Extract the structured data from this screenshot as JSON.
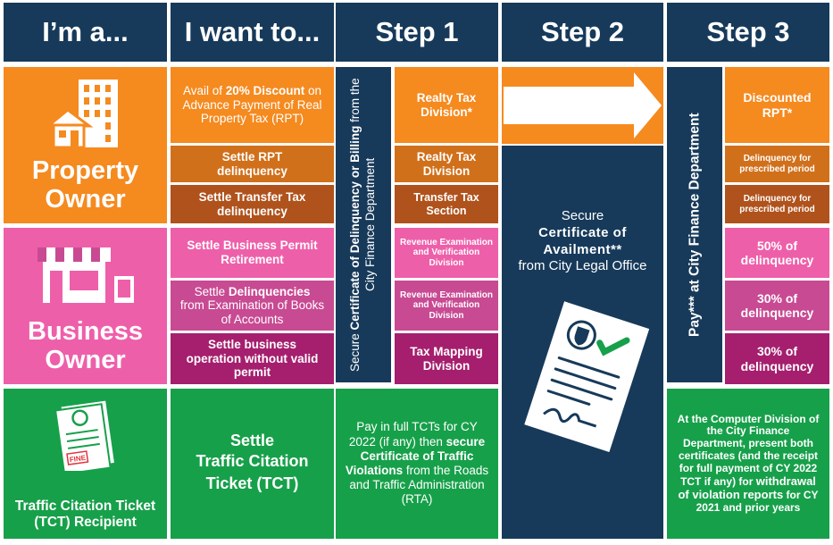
{
  "headers": {
    "im_a": "I’m a...",
    "want": "I want to...",
    "step1": "Step 1",
    "step2": "Step 2",
    "step3": "Step 3"
  },
  "property": {
    "title_line1": "Property",
    "title_line2": "Owner",
    "w1_pre": "Avail of ",
    "w1_bold": "20% Discount",
    "w1_post": " on Advance Payment of Real Property Tax (RPT)",
    "w2_pre": "Settle ",
    "w2_bold": "RPT",
    "w2_post": "delinquency",
    "w3_pre": "Settle ",
    "w3_bold": "Transfer Tax",
    "w3_post": "delinquency",
    "s1a": "Realty Tax Division*",
    "s1b": "Realty Tax Division",
    "s1c": "Transfer Tax Section",
    "s3a": "Discounted RPT*",
    "s3b": "Delinquency for prescribed period",
    "s3c": "Delinquency for prescribed period"
  },
  "business": {
    "title_line1": "Business",
    "title_line2": "Owner",
    "w1_pre": "Settle ",
    "w1_bold": "Business Permit Retirement",
    "w2_pre": "Settle ",
    "w2_bold": "Delinquencies",
    "w2_post": "from Examination of Books of Accounts",
    "w3_pre": "Settle ",
    "w3_bold": "business operation without valid permit",
    "s1a": "Revenue Examination and Verification Division",
    "s1b": "Revenue Examination and Verification Division",
    "s1c": "Tax Mapping Division",
    "s3a": "50% of delinquency",
    "s3b": "30% of delinquency",
    "s3c": "30% of delinquency"
  },
  "step1_vertical": {
    "pre": "Secure ",
    "bold": "Certificate of Delinquency or Billing",
    "post": " from the City Finance Department"
  },
  "step2_text": {
    "pre": "Secure",
    "bold": "Certificate of Availment**",
    "post": "from City Legal Office"
  },
  "step3_vertical": {
    "text": "Pay*** at City Finance Department"
  },
  "traffic": {
    "title": "Traffic Citation Ticket (TCT) Recipient",
    "fine_label": "FINE",
    "want_line1": "Settle",
    "want_line2": "Traffic Citation Ticket (TCT)",
    "s1_pre": "Pay in full TCTs for CY 2022 (if any) then ",
    "s1_bold": "secure Certificate of Traffic Violations",
    "s1_post": " from the Roads and Traffic Administration (RTA)",
    "s3_pre": "At the Computer Division of the City Finance Department, present both certificates (and the receipt for full payment of CY 2022 TCT if any) for ",
    "s3_bold": "withdrawal of violation reports",
    "s3_post": " for CY 2021 and prior years"
  },
  "colors": {
    "navy": "#173a5a",
    "orange": "#f58a1f",
    "pink": "#ee5faa",
    "purple": "#a51f6e",
    "green": "#17a04a"
  }
}
